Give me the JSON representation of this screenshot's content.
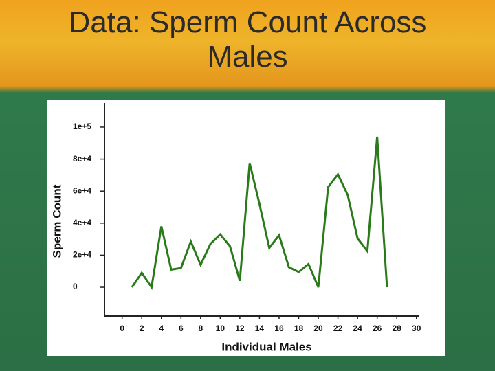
{
  "chart_data": {
    "type": "line",
    "title": "Data: Sperm Count Across Males",
    "x_label": "Individual Males",
    "y_label": "Sperm Count",
    "x": [
      1,
      2,
      3,
      4,
      5,
      6,
      7,
      8,
      9,
      10,
      11,
      12,
      13,
      14,
      15,
      16,
      17,
      18,
      19,
      20,
      21,
      22,
      23,
      24,
      25,
      26,
      27
    ],
    "values": [
      0,
      9000,
      0,
      38000,
      11000,
      12000,
      28500,
      14000,
      27000,
      33000,
      25500,
      4000,
      77500,
      52000,
      24500,
      32500,
      12500,
      9500,
      14500,
      0,
      62500,
      70500,
      57500,
      30500,
      22500,
      94000,
      0
    ],
    "color": "#2a7a1a",
    "xlim": [
      -1.8,
      30.3
    ],
    "xticks": [
      0,
      2,
      4,
      6,
      8,
      10,
      12,
      14,
      16,
      18,
      20,
      22,
      24,
      26,
      28,
      30
    ],
    "ylim": [
      -18000,
      115000
    ],
    "yticks": [
      0,
      {
        "value": 20000,
        "label": "2e+4"
      },
      {
        "value": 40000,
        "label": "4e+4"
      },
      {
        "value": 60000,
        "label": "6e+4"
      },
      {
        "value": 80000,
        "label": "8e+4"
      },
      {
        "value": 100000,
        "label": "1e+5"
      }
    ]
  }
}
